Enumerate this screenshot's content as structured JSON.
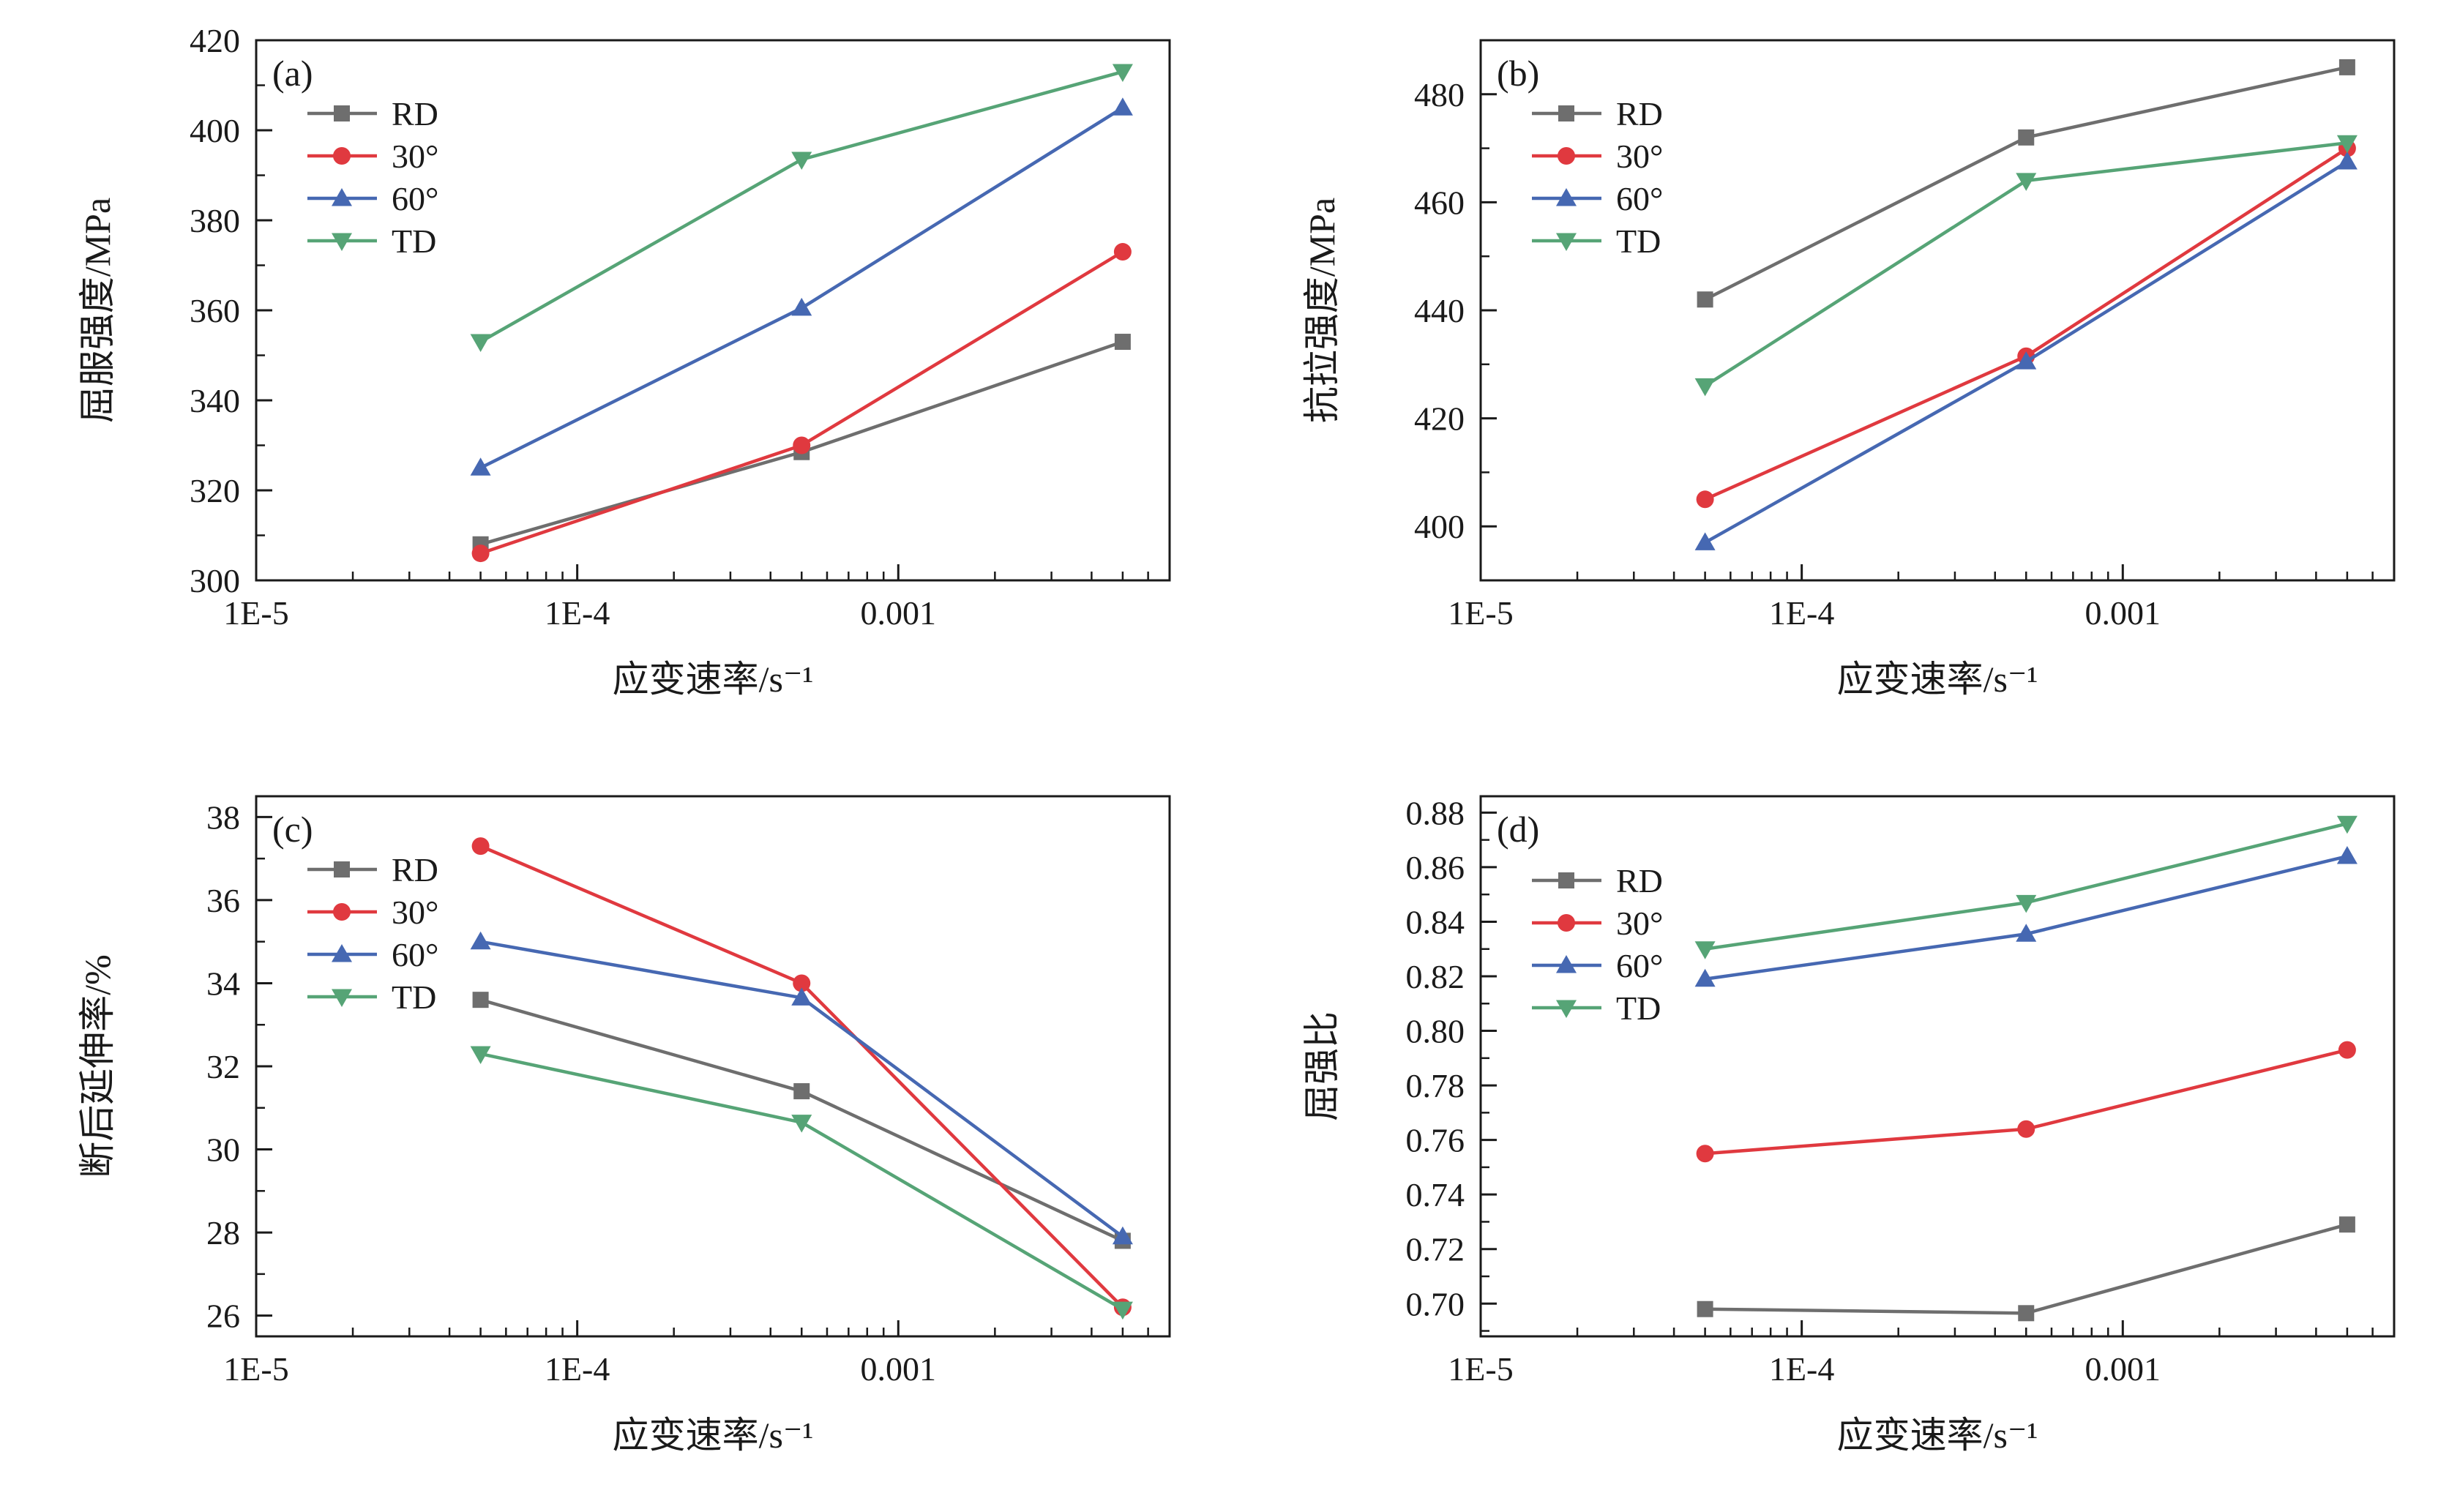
{
  "figure": {
    "panel_labels": [
      "(a)",
      "(b)",
      "(c)",
      "(d)"
    ],
    "shared_xlabel": "应变速率/s⁻¹",
    "series_names": [
      "RD",
      "30°",
      "60°",
      "TD"
    ],
    "series_colors": {
      "RD": "#6e6e6e",
      "30deg": "#e0393f",
      "60deg": "#4668b2",
      "TD": "#56a476"
    }
  },
  "chart_data": [
    {
      "type": "line",
      "panel_label": "(a)",
      "xlabel": "应变速率/s⁻¹",
      "ylabel": "屈服强度/MPa",
      "xscale": "log",
      "xlim": [
        1e-05,
        0.007
      ],
      "xticks": [
        {
          "v": 1e-05,
          "label": "1E-5"
        },
        {
          "v": 0.0001,
          "label": "1E-4"
        },
        {
          "v": 0.001,
          "label": "0.001"
        }
      ],
      "ylim": [
        300,
        420
      ],
      "yticks": [
        300,
        320,
        340,
        360,
        380,
        400,
        420
      ],
      "ydecimals": 0,
      "grid": false,
      "legend_position": "top-left-inside",
      "legend_pos": [
        70,
        100
      ],
      "x": [
        5e-05,
        0.0005,
        0.005
      ],
      "series": [
        {
          "name": "RD",
          "marker": "square",
          "color": "#6e6e6e",
          "values": [
            308,
            328.5,
            353
          ]
        },
        {
          "name": "30°",
          "marker": "circle",
          "color": "#e0393f",
          "values": [
            306,
            330,
            373
          ]
        },
        {
          "name": "60°",
          "marker": "triangle-up",
          "color": "#4668b2",
          "values": [
            325,
            360.5,
            405
          ]
        },
        {
          "name": "TD",
          "marker": "triangle-down",
          "color": "#56a476",
          "values": [
            353,
            393.5,
            413
          ]
        }
      ]
    },
    {
      "type": "line",
      "panel_label": "(b)",
      "xlabel": "应变速率/s⁻¹",
      "ylabel": "抗拉强度/MPa",
      "xscale": "log",
      "xlim": [
        1e-05,
        0.007
      ],
      "xticks": [
        {
          "v": 1e-05,
          "label": "1E-5"
        },
        {
          "v": 0.0001,
          "label": "1E-4"
        },
        {
          "v": 0.001,
          "label": "0.001"
        }
      ],
      "ylim": [
        390,
        490
      ],
      "yticks": [
        400,
        420,
        440,
        460,
        480
      ],
      "ydecimals": 0,
      "grid": false,
      "legend_position": "top-left-inside",
      "legend_pos": [
        70,
        100
      ],
      "x": [
        5e-05,
        0.0005,
        0.005
      ],
      "series": [
        {
          "name": "RD",
          "marker": "square",
          "color": "#6e6e6e",
          "values": [
            442,
            472,
            485
          ]
        },
        {
          "name": "30°",
          "marker": "circle",
          "color": "#e0393f",
          "values": [
            405,
            431.5,
            470
          ]
        },
        {
          "name": "60°",
          "marker": "triangle-up",
          "color": "#4668b2",
          "values": [
            397,
            430.5,
            467.5
          ]
        },
        {
          "name": "TD",
          "marker": "triangle-down",
          "color": "#56a476",
          "values": [
            426,
            464,
            471
          ]
        }
      ]
    },
    {
      "type": "line",
      "panel_label": "(c)",
      "xlabel": "应变速率/s⁻¹",
      "ylabel": "断后延伸率/%",
      "xscale": "log",
      "xlim": [
        1e-05,
        0.007
      ],
      "xticks": [
        {
          "v": 1e-05,
          "label": "1E-5"
        },
        {
          "v": 0.0001,
          "label": "1E-4"
        },
        {
          "v": 0.001,
          "label": "0.001"
        }
      ],
      "ylim": [
        25.5,
        38.5
      ],
      "yticks": [
        26,
        28,
        30,
        32,
        34,
        36,
        38
      ],
      "ydecimals": 0,
      "grid": false,
      "legend_position": "top-left-inside",
      "legend_pos": [
        70,
        100
      ],
      "x": [
        5e-05,
        0.0005,
        0.005
      ],
      "series": [
        {
          "name": "RD",
          "marker": "square",
          "color": "#6e6e6e",
          "values": [
            33.6,
            31.4,
            27.8
          ]
        },
        {
          "name": "30°",
          "marker": "circle",
          "color": "#e0393f",
          "values": [
            37.3,
            34.0,
            26.2
          ]
        },
        {
          "name": "60°",
          "marker": "triangle-up",
          "color": "#4668b2",
          "values": [
            35.0,
            33.65,
            27.9
          ]
        },
        {
          "name": "TD",
          "marker": "triangle-down",
          "color": "#56a476",
          "values": [
            32.3,
            30.65,
            26.15
          ]
        }
      ]
    },
    {
      "type": "line",
      "panel_label": "(d)",
      "xlabel": "应变速率/s⁻¹",
      "ylabel": "屈强比",
      "xscale": "log",
      "xlim": [
        1e-05,
        0.007
      ],
      "xticks": [
        {
          "v": 1e-05,
          "label": "1E-5"
        },
        {
          "v": 0.0001,
          "label": "1E-4"
        },
        {
          "v": 0.001,
          "label": "0.001"
        }
      ],
      "ylim": [
        0.688,
        0.886
      ],
      "yticks": [
        0.7,
        0.72,
        0.74,
        0.76,
        0.78,
        0.8,
        0.82,
        0.84,
        0.86,
        0.88
      ],
      "ydecimals": 2,
      "grid": false,
      "legend_position": "top-left-inside",
      "legend_pos": [
        70,
        115
      ],
      "x": [
        5e-05,
        0.0005,
        0.005
      ],
      "series": [
        {
          "name": "RD",
          "marker": "square",
          "color": "#6e6e6e",
          "values": [
            0.698,
            0.6965,
            0.729
          ]
        },
        {
          "name": "30°",
          "marker": "circle",
          "color": "#e0393f",
          "values": [
            0.755,
            0.764,
            0.793
          ]
        },
        {
          "name": "60°",
          "marker": "triangle-up",
          "color": "#4668b2",
          "values": [
            0.819,
            0.8355,
            0.864
          ]
        },
        {
          "name": "TD",
          "marker": "triangle-down",
          "color": "#56a476",
          "values": [
            0.83,
            0.847,
            0.876
          ]
        }
      ]
    }
  ]
}
